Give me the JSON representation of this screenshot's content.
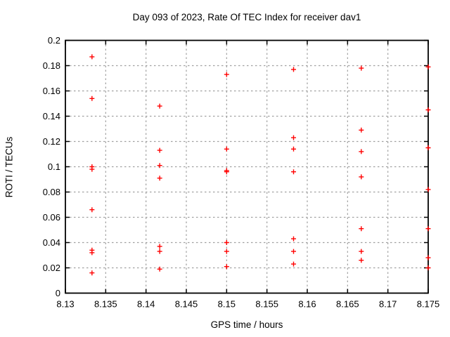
{
  "chart_data": {
    "type": "scatter",
    "title": "Day 093 of 2023, Rate Of TEC Index for receiver dav1",
    "xlabel": "GPS time / hours",
    "ylabel": "ROTI / TECUs",
    "xlim": [
      8.13,
      8.175
    ],
    "ylim": [
      0,
      0.2
    ],
    "xticks": [
      8.13,
      8.135,
      8.14,
      8.145,
      8.15,
      8.155,
      8.16,
      8.165,
      8.17,
      8.175
    ],
    "xtick_labels": [
      "8.13",
      "8.135",
      "8.14",
      "8.145",
      "8.15",
      "8.155",
      "8.16",
      "8.165",
      "8.17",
      "8.175"
    ],
    "yticks": [
      0,
      0.02,
      0.04,
      0.06,
      0.08,
      0.1,
      0.12,
      0.14,
      0.16,
      0.18,
      0.2
    ],
    "ytick_labels": [
      "0",
      "0.02",
      "0.04",
      "0.06",
      "0.08",
      "0.1",
      "0.12",
      "0.14",
      "0.16",
      "0.18",
      "0.2"
    ],
    "grid": true,
    "legend_position": "none",
    "marker_shape": "plus",
    "marker_color": "#ff0000",
    "grid_color": "#a0a0a0",
    "axis_color": "#000000",
    "background_color": "#ffffff",
    "series": [
      {
        "name": "ROTI",
        "points": [
          [
            8.1333,
            0.187
          ],
          [
            8.1333,
            0.154
          ],
          [
            8.1333,
            0.1
          ],
          [
            8.1333,
            0.098
          ],
          [
            8.1333,
            0.066
          ],
          [
            8.1333,
            0.034
          ],
          [
            8.1333,
            0.032
          ],
          [
            8.1333,
            0.016
          ],
          [
            8.1417,
            0.148
          ],
          [
            8.1417,
            0.113
          ],
          [
            8.1417,
            0.101
          ],
          [
            8.1417,
            0.091
          ],
          [
            8.1417,
            0.037
          ],
          [
            8.1417,
            0.033
          ],
          [
            8.1417,
            0.019
          ],
          [
            8.15,
            0.173
          ],
          [
            8.15,
            0.114
          ],
          [
            8.15,
            0.097
          ],
          [
            8.15,
            0.096
          ],
          [
            8.15,
            0.04
          ],
          [
            8.15,
            0.033
          ],
          [
            8.15,
            0.021
          ],
          [
            8.1583,
            0.177
          ],
          [
            8.1583,
            0.123
          ],
          [
            8.1583,
            0.114
          ],
          [
            8.1583,
            0.096
          ],
          [
            8.1583,
            0.043
          ],
          [
            8.1583,
            0.033
          ],
          [
            8.1583,
            0.023
          ],
          [
            8.1667,
            0.178
          ],
          [
            8.1667,
            0.129
          ],
          [
            8.1667,
            0.112
          ],
          [
            8.1667,
            0.092
          ],
          [
            8.1667,
            0.051
          ],
          [
            8.1667,
            0.033
          ],
          [
            8.1667,
            0.026
          ],
          [
            8.175,
            0.179
          ],
          [
            8.175,
            0.145
          ],
          [
            8.175,
            0.115
          ],
          [
            8.175,
            0.082
          ],
          [
            8.175,
            0.051
          ],
          [
            8.175,
            0.028
          ],
          [
            8.175,
            0.02
          ]
        ]
      }
    ]
  }
}
